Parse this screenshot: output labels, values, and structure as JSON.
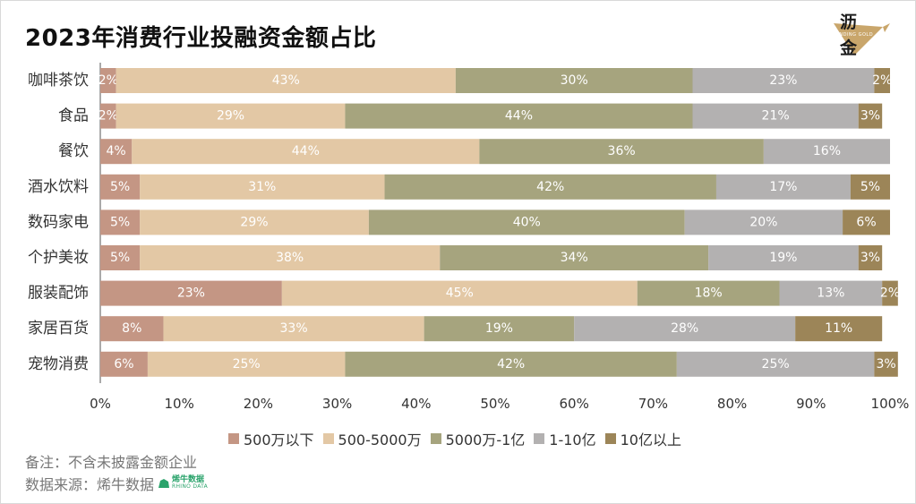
{
  "title": "2023年消费行业投融资金额占比",
  "logo": {
    "char1": "沥",
    "char2": "金",
    "sub": "FINDING GOLD"
  },
  "chart_data": {
    "type": "bar",
    "orientation": "horizontal",
    "stacked": true,
    "percent": true,
    "title": "2023年消费行业投融资金额占比",
    "categories": [
      "咖啡茶饮",
      "食品",
      "餐饮",
      "酒水饮料",
      "数码家电",
      "个护美妆",
      "服装配饰",
      "家居百货",
      "宠物消费"
    ],
    "series": [
      {
        "name": "500万以下",
        "color": "#c49684",
        "values": [
          2,
          2,
          4,
          5,
          5,
          5,
          23,
          8,
          6
        ]
      },
      {
        "name": "500-5000万",
        "color": "#e3c8a5",
        "values": [
          43,
          29,
          44,
          31,
          29,
          38,
          45,
          33,
          25
        ]
      },
      {
        "name": "5000万-1亿",
        "color": "#a6a47e",
        "values": [
          30,
          44,
          36,
          42,
          40,
          34,
          18,
          19,
          42
        ]
      },
      {
        "name": "1-10亿",
        "color": "#b3b1b1",
        "values": [
          23,
          21,
          16,
          17,
          20,
          19,
          13,
          28,
          25
        ]
      },
      {
        "name": "10亿以上",
        "color": "#9c8558",
        "values": [
          2,
          3,
          0,
          5,
          6,
          3,
          2,
          11,
          3
        ]
      }
    ],
    "xlim": [
      0,
      100
    ],
    "xticks": [
      "0%",
      "10%",
      "20%",
      "30%",
      "40%",
      "50%",
      "60%",
      "70%",
      "80%",
      "90%",
      "100%"
    ],
    "legend_position": "bottom"
  },
  "notes": {
    "note1": "备注：不含未披露金额企业",
    "note2": "数据来源：烯牛数据"
  },
  "rhino_logo": {
    "cn": "烯牛数据",
    "en": "RHINO DATA"
  }
}
